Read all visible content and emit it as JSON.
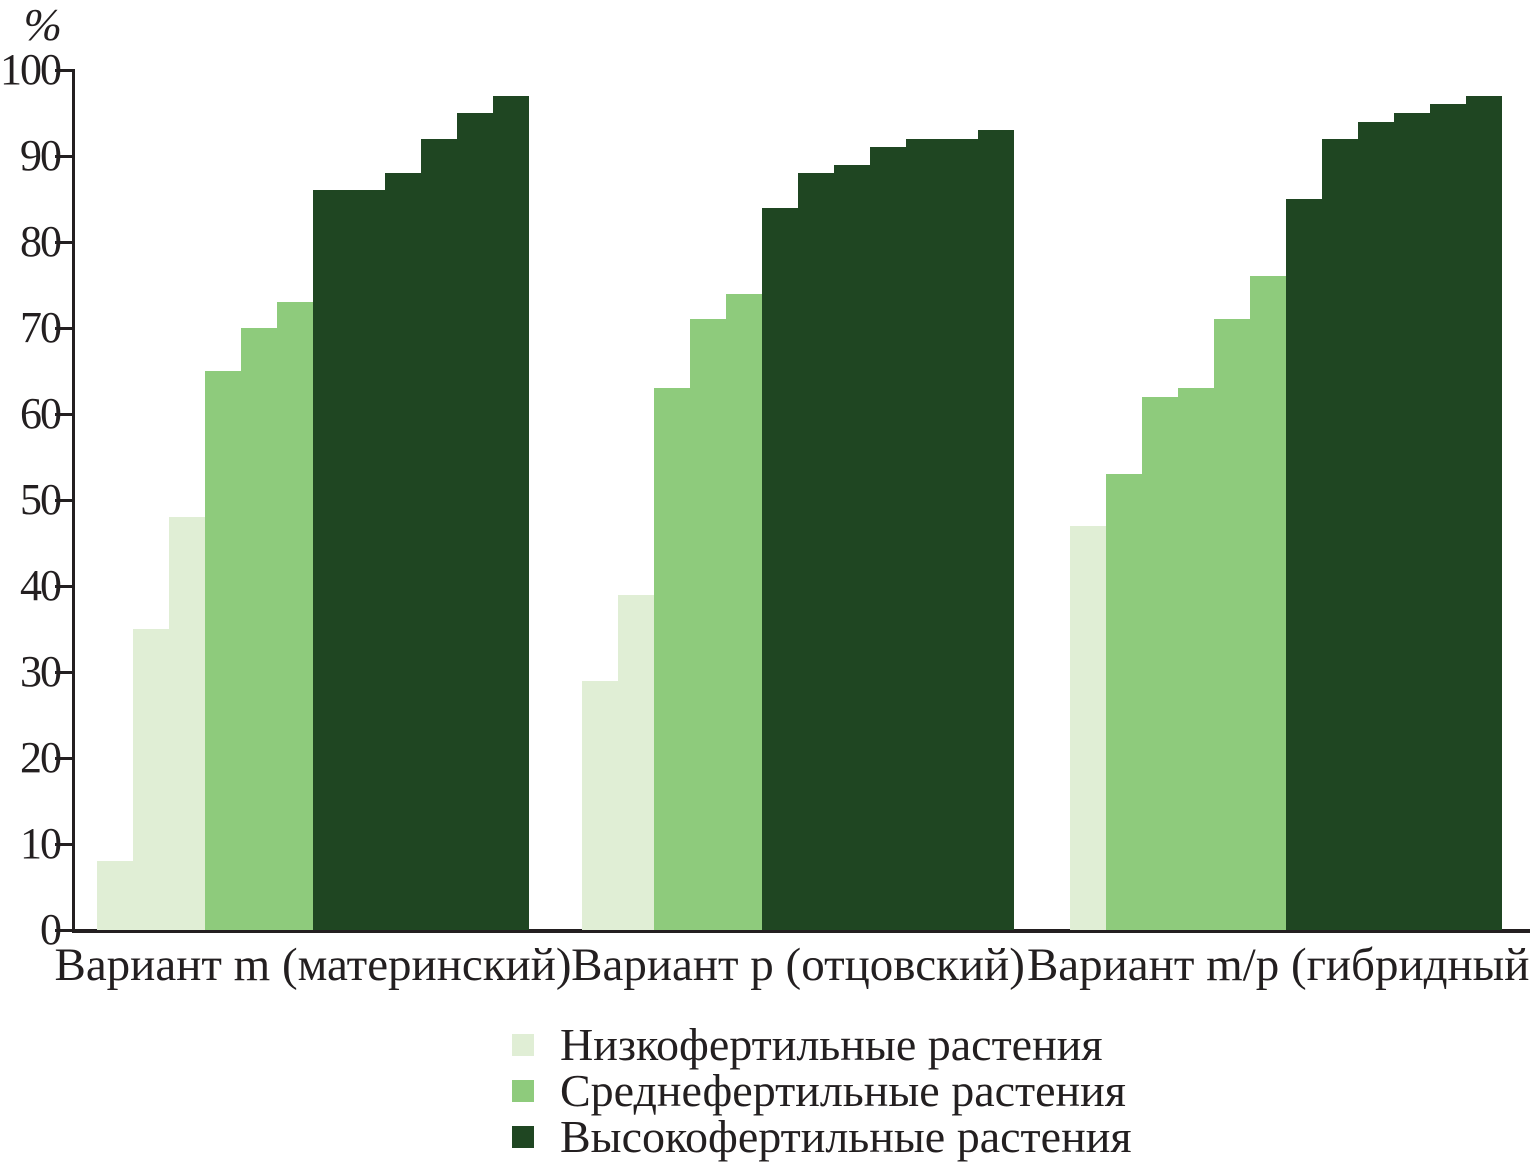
{
  "chart_data": {
    "type": "bar",
    "title": "",
    "xlabel": "",
    "ylabel": "%",
    "ylim": [
      0,
      100
    ],
    "yticks": [
      0,
      10,
      20,
      30,
      40,
      50,
      60,
      70,
      80,
      90,
      100
    ],
    "grid": false,
    "legend_position": "bottom-center",
    "axis_color": "#231f20",
    "text_color": "#231f20",
    "groups": [
      {
        "label": "Вариант m (материнский)",
        "bars": [
          {
            "series": "low",
            "values": [
              8,
              35,
              48
            ]
          },
          {
            "series": "mid",
            "values": [
              65,
              70,
              73
            ]
          },
          {
            "series": "high",
            "values": [
              86,
              86,
              88,
              92,
              95,
              97
            ]
          }
        ]
      },
      {
        "label": "Вариант p (отцовский)",
        "bars": [
          {
            "series": "low",
            "values": [
              29,
              39
            ]
          },
          {
            "series": "mid",
            "values": [
              63,
              71,
              74
            ]
          },
          {
            "series": "high",
            "values": [
              84,
              88,
              89,
              91,
              92,
              92,
              93
            ]
          }
        ]
      },
      {
        "label": "Вариант m/p (гибридный)",
        "bars": [
          {
            "series": "low",
            "values": [
              47
            ]
          },
          {
            "series": "mid",
            "values": [
              53,
              62,
              63,
              71,
              76
            ]
          },
          {
            "series": "high",
            "values": [
              85,
              92,
              94,
              95,
              96,
              97
            ]
          }
        ]
      }
    ],
    "legend": [
      {
        "series": "low",
        "label": "Низкофертильные растения",
        "color": "#e0eed5"
      },
      {
        "series": "mid",
        "label": "Среднефертильные растения",
        "color": "#8ecb7c"
      },
      {
        "series": "high",
        "label": "Высокофертильные растения",
        "color": "#1f4622"
      }
    ]
  }
}
